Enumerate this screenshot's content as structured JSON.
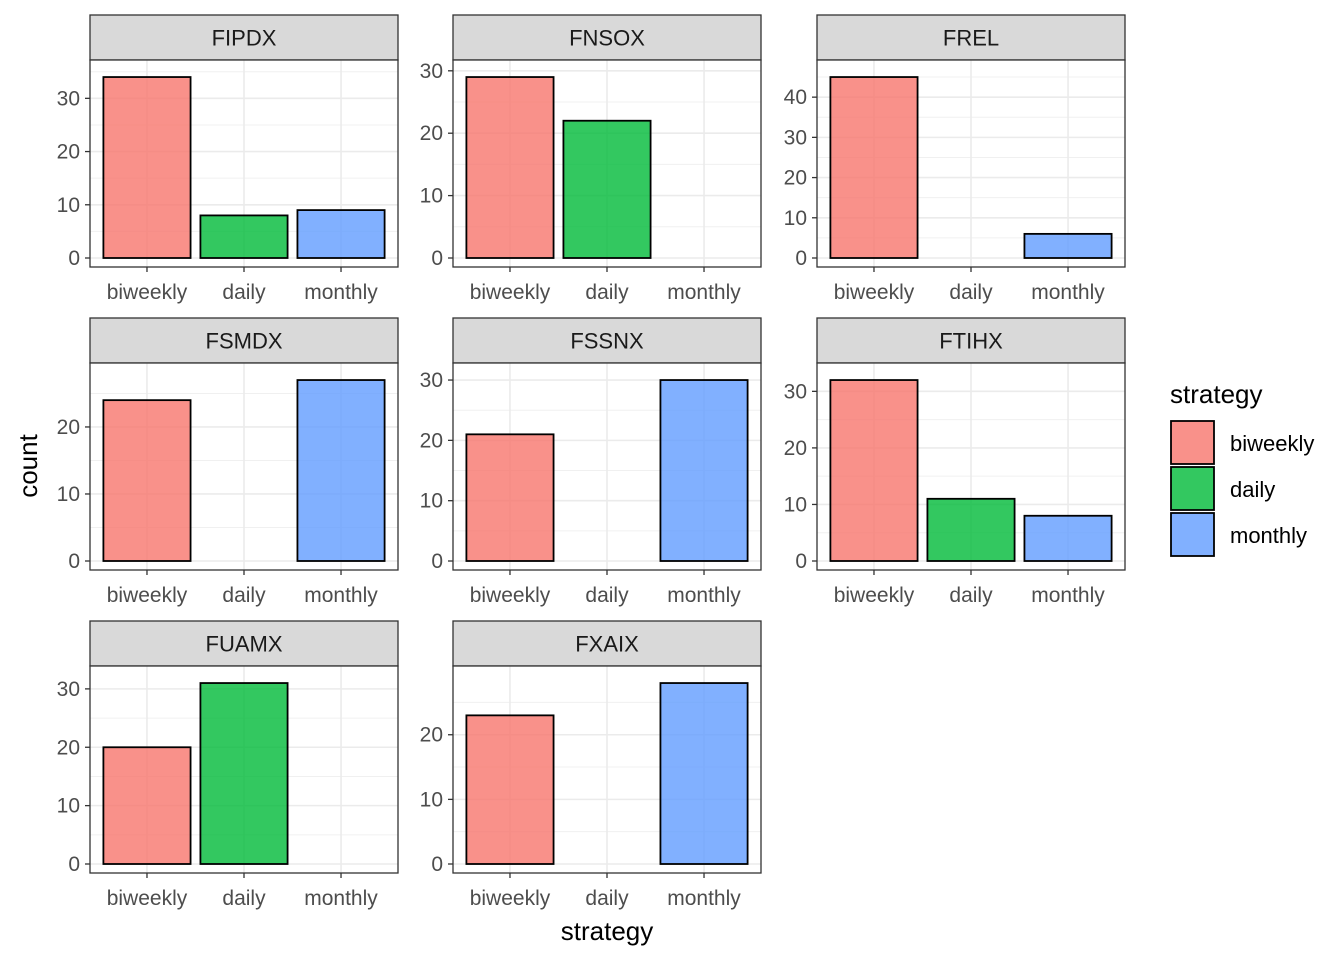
{
  "chart_data": {
    "type": "bar",
    "faceted": true,
    "xlabel": "strategy",
    "ylabel": "count",
    "categories": [
      "biweekly",
      "daily",
      "monthly"
    ],
    "colors": {
      "biweekly": "#F8766D",
      "daily": "#00BA38",
      "monthly": "#619CFF"
    },
    "legend": {
      "title": "strategy",
      "position": "right",
      "entries": [
        "biweekly",
        "daily",
        "monthly"
      ]
    },
    "grid": true,
    "panels": [
      {
        "name": "FIPDX",
        "values": [
          34,
          8,
          9
        ],
        "ylim": [
          0,
          40
        ],
        "yticks": [
          0,
          10,
          20,
          30
        ]
      },
      {
        "name": "FNSOX",
        "values": [
          29,
          22,
          0
        ],
        "ylim": [
          0,
          30
        ],
        "yticks": [
          0,
          10,
          20,
          30
        ]
      },
      {
        "name": "FREL",
        "values": [
          45,
          0,
          6
        ],
        "ylim": [
          0,
          50
        ],
        "yticks": [
          0,
          10,
          20,
          30,
          40
        ]
      },
      {
        "name": "FSMDX",
        "values": [
          24,
          0,
          27
        ],
        "ylim": [
          0,
          30
        ],
        "yticks": [
          0,
          10,
          20
        ]
      },
      {
        "name": "FSSNX",
        "values": [
          21,
          0,
          30
        ],
        "ylim": [
          0,
          30
        ],
        "yticks": [
          0,
          10,
          20,
          30
        ]
      },
      {
        "name": "FTIHX",
        "values": [
          32,
          11,
          8
        ],
        "ylim": [
          0,
          35
        ],
        "yticks": [
          0,
          10,
          20,
          30
        ]
      },
      {
        "name": "FUAMX",
        "values": [
          20,
          31,
          0
        ],
        "ylim": [
          0,
          35
        ],
        "yticks": [
          0,
          10,
          20,
          30
        ]
      },
      {
        "name": "FXAIX",
        "values": [
          23,
          0,
          28
        ],
        "ylim": [
          0,
          30
        ],
        "yticks": [
          0,
          10,
          20
        ]
      }
    ]
  }
}
